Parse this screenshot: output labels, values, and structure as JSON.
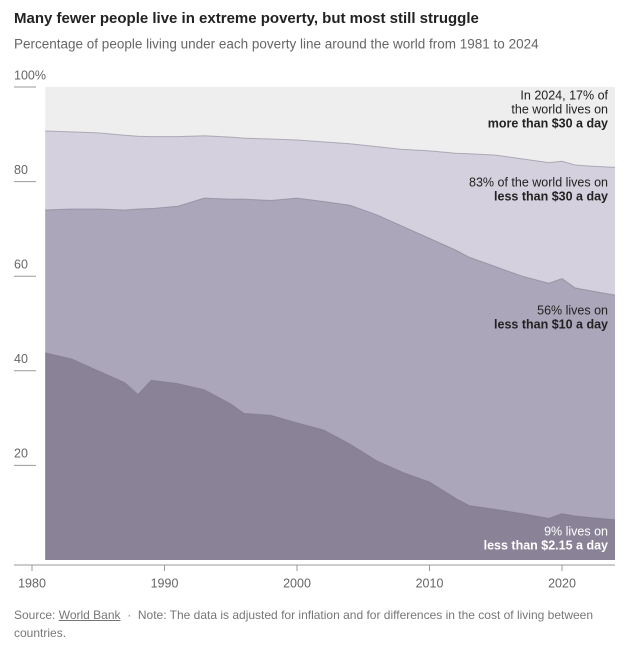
{
  "chart_data": {
    "type": "area",
    "title": "Many fewer people live in extreme poverty, but most still struggle",
    "subtitle": "Percentage of people living under each poverty line around the world from 1981 to 2024",
    "x": [
      1981,
      1983,
      1985,
      1987,
      1988,
      1989,
      1991,
      1993,
      1995,
      1996,
      1998,
      2000,
      2002,
      2004,
      2006,
      2008,
      2010,
      2012,
      2013,
      2015,
      2017,
      2019,
      2020,
      2021,
      2022,
      2024
    ],
    "series": [
      {
        "color": "#d4d0dd",
        "values": [
          90.7,
          90.5,
          90.3,
          89.8,
          89.6,
          89.5,
          89.5,
          89.7,
          89.4,
          89.2,
          89,
          88.8,
          88.4,
          88,
          87.4,
          86.8,
          86.5,
          86,
          85.9,
          85.6,
          84.8,
          84,
          84.3,
          83.5,
          83.3,
          83
        ]
      },
      {
        "color": "#aca6ba",
        "values": [
          74,
          74.2,
          74.2,
          74,
          74.2,
          74.3,
          74.8,
          76.5,
          76.3,
          76.3,
          76,
          76.5,
          75.8,
          75,
          73,
          70.5,
          68,
          65.5,
          64,
          62,
          60,
          58.5,
          59.5,
          57.5,
          57,
          56
        ]
      },
      {
        "color": "#8a8398",
        "values": [
          43.8,
          42.5,
          40,
          37.5,
          35,
          38,
          37.3,
          36,
          33,
          31,
          30.6,
          29,
          27.5,
          24.5,
          21,
          18.5,
          16.5,
          13,
          11.5,
          10.7,
          9.8,
          8.8,
          9.8,
          9.3,
          9,
          8.5
        ]
      }
    ],
    "xlim": [
      1980,
      2024
    ],
    "xticks": [
      1980,
      1990,
      2000,
      2010,
      2020
    ],
    "ylim": [
      0,
      100
    ],
    "yticks": [
      {
        "value": 100,
        "label": "100%"
      },
      80,
      60,
      40,
      20
    ],
    "background_color": "#eeeeee",
    "annotations": [
      {
        "lines": [
          "In 2024, 17% of",
          "the world lives on"
        ],
        "bold": "more than $30 a day"
      },
      {
        "lines": [
          "83% of the world lives on"
        ],
        "bold": "less than $30 a day"
      },
      {
        "lines": [
          "56% lives on"
        ],
        "bold": "less than $10 a day"
      },
      {
        "lines": [
          "9% lives on"
        ],
        "bold": "less than $2.15 a day"
      }
    ]
  },
  "footer": {
    "source_label": "Source:",
    "source": "World Bank",
    "separator": "·",
    "note": "Note: The data is adjusted for inflation and for differences in the cost of living between countries."
  }
}
